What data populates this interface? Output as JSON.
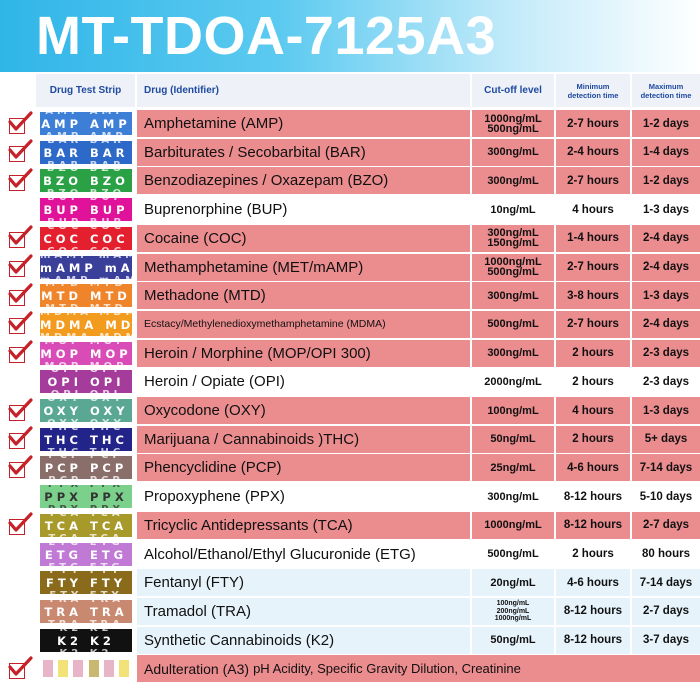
{
  "title": "MT-TDOA-7125A3",
  "headers": {
    "strip": "Drug Test Strip",
    "drug": "Drug (Identifier)",
    "cutoff": "Cut-off level",
    "min_line1": "Minimum",
    "min_line2": "detection time",
    "max_line1": "Maximum",
    "max_line2": "detection time"
  },
  "colors": {
    "highlight": "#eb8c8f",
    "banner": "#30b5e8",
    "header_text": "#1f4aa0",
    "check": "#c62028"
  },
  "rows": [
    {
      "strip": "AMP",
      "strip_color": "#3d7fd6",
      "drug": "Amphetamine (AMP)",
      "cutoff_1": "1000ng/mL",
      "cutoff_2": "500ng/mL",
      "min": "2-7 hours",
      "max": "1-2 days",
      "checked": true
    },
    {
      "strip": "BAR",
      "strip_color": "#2c69c9",
      "drug": "Barbiturates / Secobarbital (BAR)",
      "cutoff_1": "300ng/mL",
      "min": "2-4 hours",
      "max": "1-4 days",
      "checked": true
    },
    {
      "strip": "BZO",
      "strip_color": "#2ba146",
      "drug": "Benzodiazepines / Oxazepam (BZO)",
      "cutoff_1": "300ng/mL",
      "min": "2-7 hours",
      "max": "1-2 days",
      "checked": true
    },
    {
      "strip": "BUP",
      "strip_color": "#e0129a",
      "drug": "Buprenorphine (BUP)",
      "cutoff_1": "10ng/mL",
      "min": "4 hours",
      "max": "1-3 days",
      "checked": false
    },
    {
      "strip": "COC",
      "strip_color": "#e5202e",
      "drug": "Cocaine (COC)",
      "cutoff_1": "300ng/mL",
      "cutoff_2": "150ng/mL",
      "min": "1-4 hours",
      "max": "2-4 days",
      "checked": true
    },
    {
      "strip": "mAMP",
      "strip_color": "#3a3f99",
      "drug": "Methamphetamine (MET/mAMP)",
      "cutoff_1": "1000ng/mL",
      "cutoff_2": "500ng/mL",
      "min": "2-7 hours",
      "max": "2-4 days",
      "checked": true
    },
    {
      "strip": "MTD",
      "strip_color": "#f0842a",
      "drug": "Methadone (MTD)",
      "cutoff_1": "300ng/mL",
      "min": "3-8 hours",
      "max": "1-3 days",
      "checked": true
    },
    {
      "strip": "MDMA",
      "strip_color": "#f39b1f",
      "drug": "Ecstacy/Methylenedioxymethamphetamine (MDMA)",
      "drug_small": true,
      "cutoff_1": "500ng/mL",
      "min": "2-7 hours",
      "max": "2-4 days",
      "checked": true
    },
    {
      "strip": "MOP",
      "strip_color": "#d94bb6",
      "drug": "Heroin / Morphine (MOP/OPI 300)",
      "cutoff_1": "300ng/mL",
      "min": "2 hours",
      "max": "2-3 days",
      "checked": true
    },
    {
      "strip": "OPI",
      "strip_color": "#a53c9b",
      "drug": "Heroin / Opiate (OPI)",
      "cutoff_1": "2000ng/mL",
      "min": "2 hours",
      "max": "2-3 days",
      "checked": false
    },
    {
      "strip": "OXY",
      "strip_color": "#5aa894",
      "drug": "Oxycodone (OXY)",
      "cutoff_1": "100ng/mL",
      "min": "4 hours",
      "max": "1-3 days",
      "checked": true
    },
    {
      "strip": "THC",
      "strip_color": "#22248a",
      "drug": "Marijuana / Cannabinoids )THC)",
      "cutoff_1": "50ng/mL",
      "min": "2 hours",
      "max": "5+ days",
      "checked": true
    },
    {
      "strip": "PCP",
      "strip_color": "#8a6e6a",
      "drug": "Phencyclidine (PCP)",
      "cutoff_1": "25ng/mL",
      "min": "4-6 hours",
      "max": "7-14 days",
      "checked": true
    },
    {
      "strip": "PPX",
      "strip_color": "#7bd08c",
      "drug": "Propoxyphene (PPX)",
      "cutoff_1": "300ng/mL",
      "min": "8-12 hours",
      "max": "5-10 days",
      "checked": false
    },
    {
      "strip": "TCA",
      "strip_color": "#a89a2a",
      "drug": "Tricyclic Antidepressants (TCA)",
      "cutoff_1": "1000ng/mL",
      "min": "8-12 hours",
      "max": "2-7 days",
      "checked": true
    },
    {
      "strip": "ETG",
      "strip_color": "#c07ad6",
      "drug": "Alcohol/Ethanol/Ethyl Glucuronide (ETG)",
      "cutoff_1": "500ng/mL",
      "min": "2 hours",
      "max": "80 hours",
      "checked": false
    },
    {
      "strip": "FTY",
      "strip_color": "#8a6b1c",
      "drug": "Fentanyl (FTY)",
      "cutoff_1": "20ng/mL",
      "min": "4-6 hours",
      "max": "7-14 days",
      "checked": false
    },
    {
      "strip": "TRA",
      "strip_color": "#c98870",
      "drug": "Tramadol (TRA)",
      "cutoff_1": "100ng/mL",
      "cutoff_2": "200ng/mL",
      "cutoff_3": "1000ng/mL",
      "min": "8-12 hours",
      "max": "2-7 days",
      "checked": false
    },
    {
      "strip": "K2",
      "strip_color": "#111111",
      "drug": "Synthetic Cannabinoids (K2)",
      "cutoff_1": "50ng/mL",
      "min": "8-12 hours",
      "max": "3-7 days",
      "checked": false
    }
  ],
  "adulteration": {
    "drug": "Adulteration (A3)",
    "detail": "pH Acidity, Specific Gravity Dilution, Creatinine",
    "checked": true
  }
}
